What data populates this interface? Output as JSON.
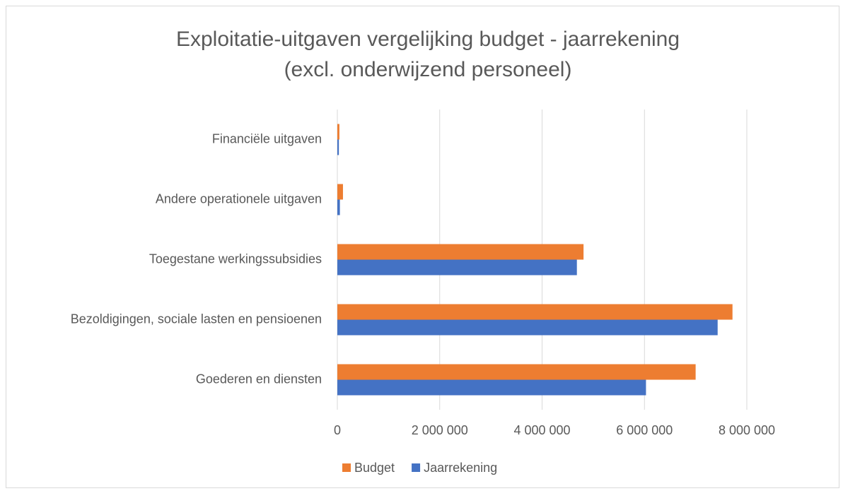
{
  "chart_data": {
    "type": "bar",
    "orientation": "horizontal",
    "title": "Exploitatie-uitgaven vergelijking budget - jaarrekening",
    "subtitle": "(excl. onderwijzend personeel)",
    "categories": [
      "Financiële uitgaven",
      "Andere operationele uitgaven",
      "Toegestane werkingssubsidies",
      "Bezoldigingen, sociale lasten en pensioenen",
      "Goederen en diensten"
    ],
    "series": [
      {
        "name": "Budget",
        "color": "#ed7d31",
        "values": [
          40000,
          110000,
          4810000,
          7720000,
          7000000
        ]
      },
      {
        "name": "Jaarrekening",
        "color": "#4472c4",
        "values": [
          30000,
          50000,
          4680000,
          7430000,
          6030000
        ]
      }
    ],
    "xlim": [
      0,
      8000000
    ],
    "xticks": [
      0,
      {
        "value": 2000000,
        "label": "2 000 000"
      },
      {
        "value": 4000000,
        "label": "4 000 000"
      },
      {
        "value": 6000000,
        "label": "6 000 000"
      },
      {
        "value": 8000000,
        "label": "8 000 000"
      }
    ],
    "grid": true,
    "legend": "bottom"
  }
}
